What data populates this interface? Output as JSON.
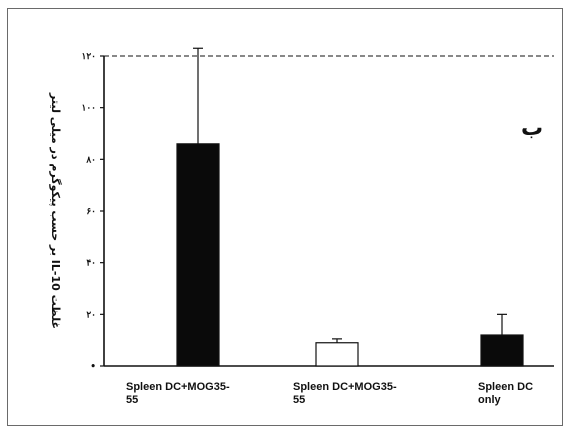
{
  "chart_data": {
    "type": "bar",
    "panel_label": "ب",
    "ylabel": "غلظت IL-10 بر حسب پیکوگرم در میلی لیتر",
    "ylim": [
      0,
      120
    ],
    "yticks": [
      0,
      20,
      40,
      60,
      80,
      100,
      120
    ],
    "ytick_labels": [
      "•",
      "۲۰",
      "۴۰",
      "۶۰",
      "۸۰",
      "۱۰۰",
      "۱۲۰"
    ],
    "categories": [
      [
        "Spleen DC+MOG35-",
        "55"
      ],
      [
        "Spleen DC+MOG35-",
        "55"
      ],
      [
        "Spleen DC",
        "only"
      ]
    ],
    "values": [
      86,
      9,
      12
    ],
    "errors": [
      37,
      1.5,
      8
    ],
    "bar_fills": [
      "#0a0a0a",
      "#ffffff",
      "#0a0a0a"
    ],
    "grid": false,
    "legend": "none"
  }
}
